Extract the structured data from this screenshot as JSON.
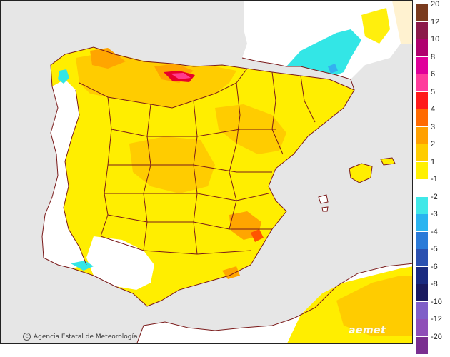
{
  "map": {
    "credit": "Agencia Estatal de Meteorología",
    "brand": "aemet",
    "colors": {
      "sea": "#e6e6e6",
      "land_neutral": "#ffffff",
      "plus1": "#ffee00",
      "plus2": "#ffcc00",
      "plus3": "#ffa500",
      "plus4": "#ff5500",
      "plus5": "#e8002a",
      "plus6": "#ff3c8c",
      "minus1": "#33e6e6",
      "minus2": "#33b0f0",
      "borders": "#7a1a1a",
      "france_land": "#ffffff",
      "morocco_land": "#ffffff"
    }
  },
  "legend": {
    "positive": [
      {
        "label": "20",
        "color": "#7a3b1e"
      },
      {
        "label": "12",
        "color": "#8c1a4a"
      },
      {
        "label": "10",
        "color": "#b0006e"
      },
      {
        "label": "8",
        "color": "#e0009a"
      },
      {
        "label": "6",
        "color": "#ff3c9c"
      },
      {
        "label": "5",
        "color": "#ff1a1a"
      },
      {
        "label": "4",
        "color": "#ff6a00"
      },
      {
        "label": "3",
        "color": "#ffa000"
      },
      {
        "label": "2",
        "color": "#ffcc00"
      },
      {
        "label": "1",
        "color": "#fff000"
      }
    ],
    "neutral": {
      "label": "-1",
      "color": "#ffffff"
    },
    "negative": [
      {
        "label": "-2",
        "color": "#40e8e8"
      },
      {
        "label": "-3",
        "color": "#2ab4f0"
      },
      {
        "label": "-4",
        "color": "#2a7ad8"
      },
      {
        "label": "-5",
        "color": "#2a50b0"
      },
      {
        "label": "-6",
        "color": "#1a2a80"
      },
      {
        "label": "-8",
        "color": "#1a1a60"
      },
      {
        "label": "-10",
        "color": "#7f5fc8"
      },
      {
        "label": "-12",
        "color": "#8f4fb8"
      },
      {
        "label": "-20",
        "color": "#7a2f90"
      }
    ]
  }
}
